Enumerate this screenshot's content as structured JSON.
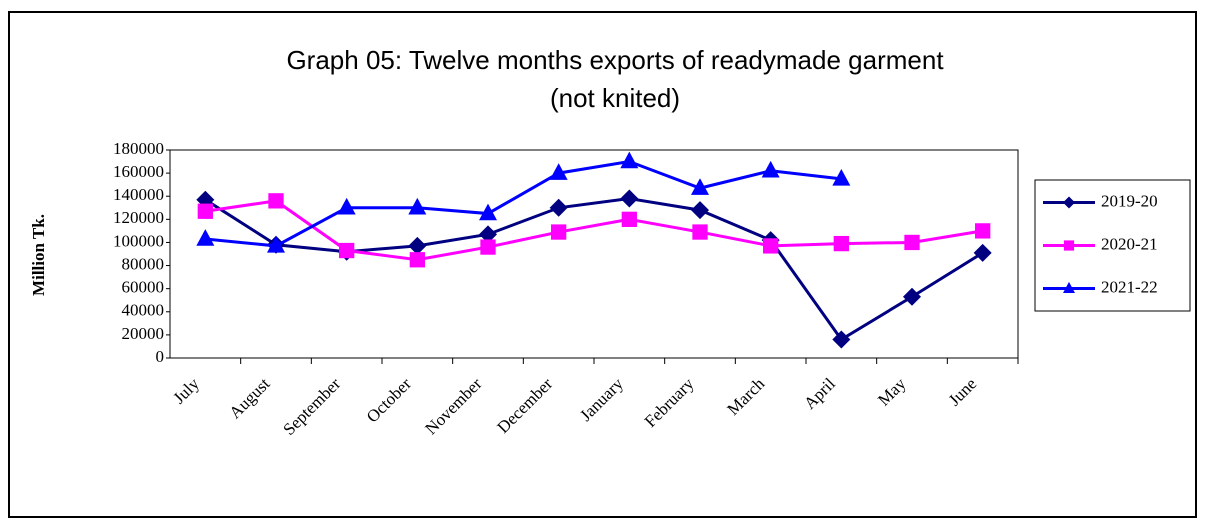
{
  "chart_data": {
    "type": "line",
    "title": [
      "Graph 05: Twelve months exports of readymade garment",
      "(not knited)"
    ],
    "y_label": "Million Tk.",
    "categories": [
      "July",
      "August",
      "September",
      "October",
      "November",
      "December",
      "January",
      "February",
      "March",
      "April",
      "May",
      "June"
    ],
    "series": [
      {
        "name": "2019-20",
        "color": "#000080",
        "marker": "diamond",
        "values": [
          137000,
          98000,
          92000,
          97000,
          107000,
          130000,
          138000,
          128000,
          102000,
          16000,
          53000,
          91000
        ]
      },
      {
        "name": "2020-21",
        "color": "#ff00ff",
        "marker": "square",
        "values": [
          127000,
          136000,
          93000,
          85000,
          96000,
          109000,
          120000,
          109000,
          97000,
          99000,
          100000,
          110000
        ]
      },
      {
        "name": "2021-22",
        "color": "#0000ff",
        "marker": "triangle",
        "values": [
          103000,
          97000,
          130000,
          130000,
          125000,
          160000,
          170000,
          147000,
          162000,
          155000,
          null,
          null
        ]
      }
    ],
    "ylim": [
      0,
      180000
    ],
    "yticks": [
      0,
      20000,
      40000,
      60000,
      80000,
      100000,
      120000,
      140000,
      160000,
      180000
    ],
    "grid": false,
    "legend": "right"
  }
}
